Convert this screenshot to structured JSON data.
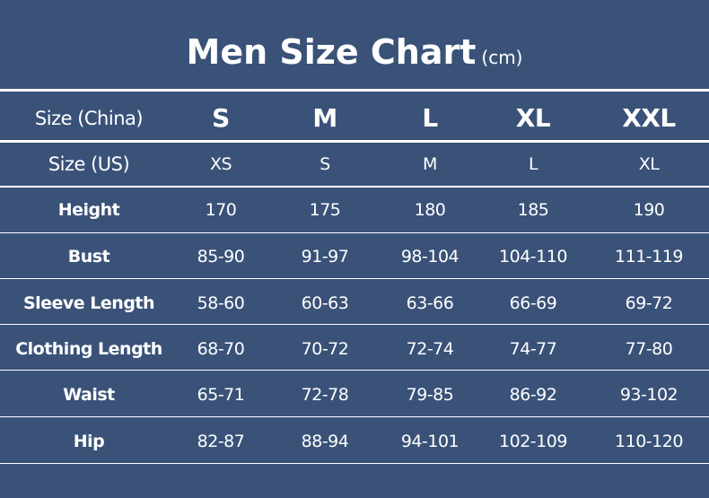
{
  "title": "Men Size Chart",
  "unit": "(cm)",
  "table": {
    "header": [
      "Size (China)",
      "S",
      "M",
      "L",
      "XL",
      "XXL"
    ],
    "rows": [
      [
        "Size (US)",
        "XS",
        "S",
        "M",
        "L",
        "XL"
      ],
      [
        "Height",
        "170",
        "175",
        "180",
        "185",
        "190"
      ],
      [
        "Bust",
        "85-90",
        "91-97",
        "98-104",
        "104-110",
        "111-119"
      ],
      [
        "Sleeve Length",
        "58-60",
        "60-63",
        "63-66",
        "66-69",
        "69-72"
      ],
      [
        "Clothing Length",
        "68-70",
        "70-72",
        "72-74",
        "74-77",
        "77-80"
      ],
      [
        "Waist",
        "65-71",
        "72-78",
        "79-85",
        "86-92",
        "93-102"
      ],
      [
        "Hip",
        "82-87",
        "88-94",
        "94-101",
        "102-109",
        "110-120"
      ]
    ]
  },
  "colors": {
    "background": "#3a5278",
    "text": "#ffffff"
  }
}
